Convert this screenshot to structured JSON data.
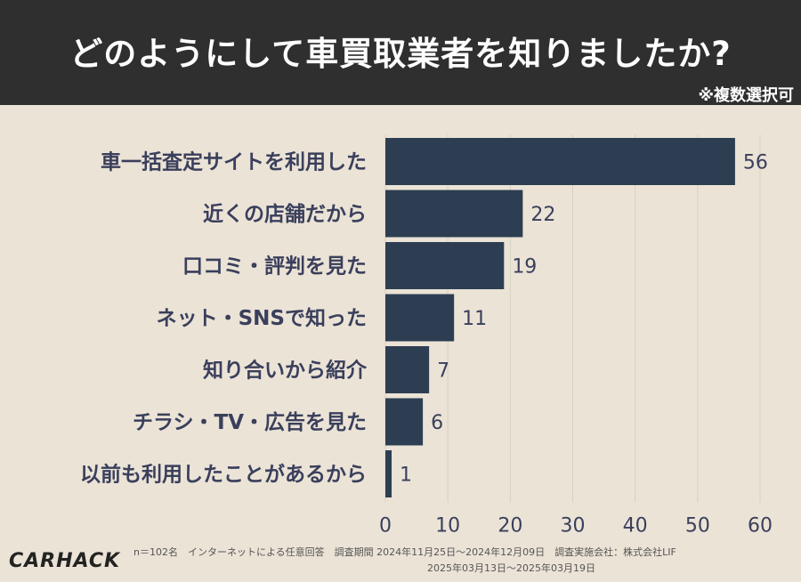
{
  "header": {
    "title": "どのようにして車買取業者を知りましたか?",
    "note": "※複数選択可"
  },
  "chart_data": {
    "type": "bar",
    "orientation": "horizontal",
    "categories": [
      "車一括査定サイトを利用した",
      "近くの店舗だから",
      "口コミ・評判を見た",
      "ネット・SNSで知った",
      "知り合いから紹介",
      "チラシ・TV・広告を見た",
      "以前も利用したことがあるから"
    ],
    "values": [
      56,
      22,
      19,
      11,
      7,
      6,
      1
    ],
    "xlim": [
      0,
      60
    ],
    "xticks": [
      0,
      10,
      20,
      30,
      40,
      50,
      60
    ],
    "title": "どのようにして車買取業者を知りましたか?",
    "xlabel": "",
    "ylabel": "",
    "bar_color": "#2d3e52"
  },
  "footer": {
    "logo": "CARHACK",
    "source_line1": "n＝102名　インターネットによる任意回答　調査期間  2024年11月25日〜2024年12月09日　調査実施会社：株式会社LIF",
    "source_line2": "2025年03月13日〜2025年03月19日"
  }
}
